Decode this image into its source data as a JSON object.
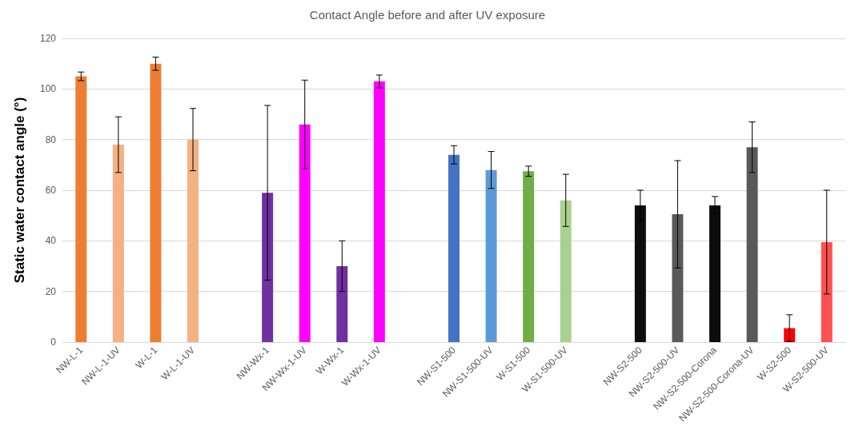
{
  "chart_data": {
    "type": "bar",
    "title": "Contact Angle before and after UV exposure",
    "ylabel": "Static water contact angle (°)",
    "categories": [
      "NW-L-1",
      "NW-L-1-UV",
      "W-L-1",
      "W-L-1-UV",
      null,
      "NW-Wx-1",
      "NW-Wx-1-UV",
      "W-Wx-1",
      "W-Wx-1-UV",
      null,
      "NW-S1-500",
      "NW-S1-500-UV",
      "W-S1-500",
      "W-S1-500-UV",
      null,
      "NW-S2-500",
      "NW-S2-500-UV",
      "NW-S2-500-Corona",
      "NW-S2-500-Corona-UV",
      "W-S2-500",
      "W-S2-500-UV"
    ],
    "values": [
      105,
      78,
      110,
      80,
      null,
      59,
      86,
      30,
      103,
      null,
      74,
      68,
      67.5,
      56,
      null,
      54,
      50.5,
      54,
      77,
      5.5,
      39.5
    ],
    "errors": [
      1.7,
      11,
      2.6,
      12.3,
      null,
      34.5,
      17.5,
      10,
      2.5,
      null,
      3.6,
      7.3,
      2,
      10.3,
      null,
      6,
      21.2,
      3.5,
      10,
      5.3,
      20.5
    ],
    "colors": [
      "#ed7d31",
      "#f4b183",
      "#ed7d31",
      "#f4b183",
      null,
      "#7030a0",
      "#ff00ff",
      "#7030a0",
      "#ff00ff",
      null,
      "#4472c4",
      "#5b9bd5",
      "#70ad47",
      "#a9d18e",
      null,
      "#0d0d0d",
      "#595959",
      "#0d0d0d",
      "#595959",
      "#ff0000",
      "#ff5050"
    ],
    "ylim": [
      0,
      120
    ],
    "yticks": [
      0,
      20,
      40,
      60,
      80,
      100,
      120
    ],
    "grid": "y"
  }
}
